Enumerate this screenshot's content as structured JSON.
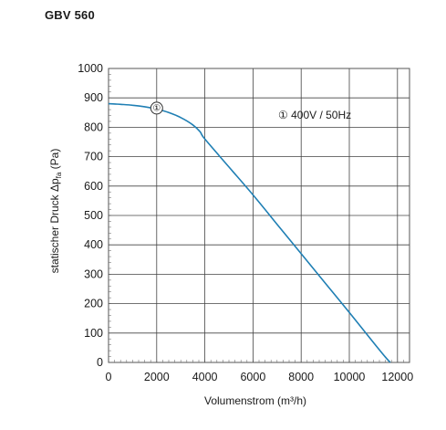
{
  "chart_data": {
    "type": "line",
    "title": "GBV 560",
    "xlabel": "Volumenstrom (m³/h)",
    "ylabel": "statischer Druck Δp",
    "ylabel_sub": "fa",
    "ylabel_unit": " (Pa)",
    "xlim": [
      0,
      12500
    ],
    "ylim": [
      0,
      1000
    ],
    "x_ticks": [
      0,
      2000,
      4000,
      6000,
      8000,
      10000,
      12000
    ],
    "y_ticks": [
      0,
      100,
      200,
      300,
      400,
      500,
      600,
      700,
      800,
      900,
      1000
    ],
    "grid": true,
    "legend": "① 400V / 50Hz",
    "series": [
      {
        "name": "①",
        "color": "#1f7fb4",
        "x": [
          0,
          500,
          1000,
          1500,
          2000,
          2500,
          3000,
          3500,
          3800,
          4000,
          5000,
          6000,
          7000,
          8000,
          9000,
          10000,
          11000,
          11500,
          11700
        ],
        "y": [
          880,
          878,
          875,
          870,
          862,
          850,
          833,
          808,
          785,
          760,
          665,
          570,
          470,
          370,
          270,
          170,
          68,
          18,
          0
        ]
      }
    ],
    "curve_marker": {
      "label": "①",
      "x": 2000
    }
  }
}
